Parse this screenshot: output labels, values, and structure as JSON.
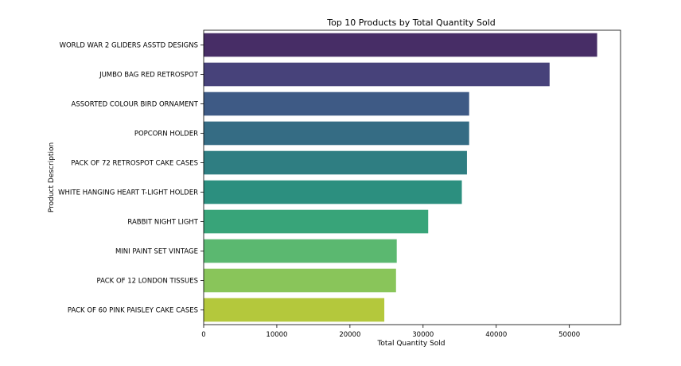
{
  "chart_data": {
    "type": "bar",
    "orientation": "horizontal",
    "title": "Top 10 Products by Total Quantity Sold",
    "xlabel": "Total Quantity Sold",
    "ylabel": "Product Description",
    "xlim": [
      0,
      57000
    ],
    "xticks": [
      0,
      10000,
      20000,
      30000,
      40000,
      50000
    ],
    "xtick_labels": [
      "0",
      "10000",
      "20000",
      "30000",
      "40000",
      "50000"
    ],
    "grid": false,
    "legend": "none",
    "palette": "viridis",
    "categories": [
      "WORLD WAR 2 GLIDERS ASSTD DESIGNS",
      "JUMBO BAG RED RETROSPOT",
      "ASSORTED COLOUR BIRD ORNAMENT",
      "POPCORN HOLDER",
      "PACK OF 72 RETROSPOT CAKE CASES",
      "WHITE HANGING HEART T-LIGHT HOLDER",
      "RABBIT NIGHT LIGHT",
      "MINI PAINT SET VINTAGE",
      "PACK OF 12 LONDON TISSUES",
      "PACK OF 60 PINK PAISLEY CAKE CASES"
    ],
    "values": [
      53800,
      47300,
      36300,
      36300,
      36000,
      35300,
      30700,
      26400,
      26300,
      24700
    ],
    "colors": [
      "#472d66",
      "#47427a",
      "#3e5a85",
      "#356c84",
      "#2f7e82",
      "#2c8f7f",
      "#38a479",
      "#5bb870",
      "#89c55a",
      "#b4c83c"
    ]
  }
}
